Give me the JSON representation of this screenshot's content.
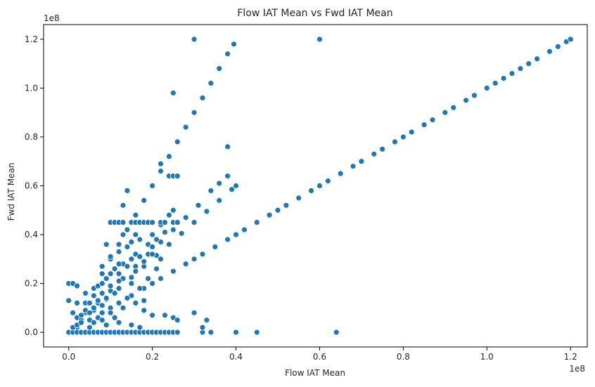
{
  "chart_data": {
    "type": "scatter",
    "title": "Flow IAT Mean vs Fwd IAT Mean",
    "xlabel": "Flow IAT Mean",
    "ylabel": "Fwd IAT Mean",
    "x_offset_label": "1e8",
    "y_offset_label": "1e8",
    "xlim": [
      -0.06,
      1.24
    ],
    "ylim": [
      -0.06,
      1.26
    ],
    "x_ticks": [
      0.0,
      0.2,
      0.4,
      0.6,
      0.8,
      1.0,
      1.2
    ],
    "x_tick_labels": [
      "0.0",
      "0.2",
      "0.4",
      "0.6",
      "0.8",
      "1.0",
      "1.2"
    ],
    "y_ticks": [
      0.0,
      0.2,
      0.4,
      0.6,
      0.8,
      1.0,
      1.2
    ],
    "y_tick_labels": [
      "0.0",
      "0.2",
      "0.4",
      "0.6",
      "0.8",
      "1.0",
      "1.2"
    ],
    "grid": false,
    "legend": "none",
    "point_color": "#1f77b4",
    "point_edge_color": "#ffffff",
    "series": [
      {
        "points": [
          [
            0.0,
            0.0
          ],
          [
            0.02,
            0.02
          ],
          [
            0.05,
            0.05
          ],
          [
            0.08,
            0.08
          ],
          [
            0.1,
            0.1
          ],
          [
            0.12,
            0.12
          ],
          [
            0.15,
            0.15
          ],
          [
            0.18,
            0.18
          ],
          [
            0.2,
            0.2
          ],
          [
            0.22,
            0.22
          ],
          [
            0.25,
            0.25
          ],
          [
            0.28,
            0.28
          ],
          [
            0.3,
            0.3
          ],
          [
            0.32,
            0.32
          ],
          [
            0.35,
            0.35
          ],
          [
            0.38,
            0.38
          ],
          [
            0.4,
            0.4
          ],
          [
            0.42,
            0.42
          ],
          [
            0.45,
            0.45
          ],
          [
            0.48,
            0.48
          ],
          [
            0.5,
            0.5
          ],
          [
            0.52,
            0.52
          ],
          [
            0.55,
            0.55
          ],
          [
            0.58,
            0.58
          ],
          [
            0.6,
            0.6
          ],
          [
            0.62,
            0.62
          ],
          [
            0.65,
            0.65
          ],
          [
            0.68,
            0.68
          ],
          [
            0.7,
            0.7
          ],
          [
            0.73,
            0.73
          ],
          [
            0.75,
            0.75
          ],
          [
            0.78,
            0.78
          ],
          [
            0.8,
            0.8
          ],
          [
            0.82,
            0.82
          ],
          [
            0.85,
            0.85
          ],
          [
            0.87,
            0.87
          ],
          [
            0.9,
            0.9
          ],
          [
            0.92,
            0.92
          ],
          [
            0.95,
            0.95
          ],
          [
            0.97,
            0.97
          ],
          [
            1.0,
            1.0
          ],
          [
            1.02,
            1.02
          ],
          [
            1.04,
            1.04
          ],
          [
            1.06,
            1.06
          ],
          [
            1.08,
            1.08
          ],
          [
            1.1,
            1.1
          ],
          [
            1.12,
            1.12
          ],
          [
            1.15,
            1.15
          ],
          [
            1.17,
            1.17
          ],
          [
            1.19,
            1.19
          ],
          [
            1.2,
            1.2
          ],
          [
            0.02,
            0.06
          ],
          [
            0.04,
            0.12
          ],
          [
            0.06,
            0.18
          ],
          [
            0.08,
            0.24
          ],
          [
            0.1,
            0.3
          ],
          [
            0.12,
            0.36
          ],
          [
            0.14,
            0.42
          ],
          [
            0.16,
            0.48
          ],
          [
            0.18,
            0.54
          ],
          [
            0.2,
            0.6
          ],
          [
            0.22,
            0.66
          ],
          [
            0.24,
            0.72
          ],
          [
            0.26,
            0.78
          ],
          [
            0.28,
            0.84
          ],
          [
            0.3,
            0.9
          ],
          [
            0.32,
            0.96
          ],
          [
            0.34,
            1.02
          ],
          [
            0.36,
            1.08
          ],
          [
            0.38,
            1.14
          ],
          [
            0.395,
            1.18
          ],
          [
            0.03,
            0.045
          ],
          [
            0.06,
            0.09
          ],
          [
            0.09,
            0.135
          ],
          [
            0.12,
            0.18
          ],
          [
            0.15,
            0.225
          ],
          [
            0.18,
            0.27
          ],
          [
            0.21,
            0.315
          ],
          [
            0.24,
            0.36
          ],
          [
            0.27,
            0.405
          ],
          [
            0.3,
            0.45
          ],
          [
            0.33,
            0.495
          ],
          [
            0.36,
            0.54
          ],
          [
            0.39,
            0.585
          ],
          [
            0.4,
            0.6
          ],
          [
            0.04,
            0.08
          ],
          [
            0.08,
            0.16
          ],
          [
            0.12,
            0.24
          ],
          [
            0.16,
            0.32
          ],
          [
            0.2,
            0.4
          ],
          [
            0.22,
            0.44
          ],
          [
            0.24,
            0.48
          ],
          [
            0.25,
            0.5
          ],
          [
            0.03,
            0.05
          ],
          [
            0.07,
            0.12
          ],
          [
            0.1,
            0.17
          ],
          [
            0.13,
            0.22
          ],
          [
            0.16,
            0.27
          ],
          [
            0.19,
            0.32
          ],
          [
            0.22,
            0.37
          ],
          [
            0.25,
            0.42
          ],
          [
            0.28,
            0.47
          ],
          [
            0.31,
            0.52
          ],
          [
            0.34,
            0.58
          ],
          [
            0.36,
            0.61
          ],
          [
            0.38,
            0.64
          ],
          [
            0.0,
            0.2
          ],
          [
            0.01,
            0.2
          ],
          [
            0.02,
            0.19
          ],
          [
            0.0,
            0.13
          ],
          [
            0.01,
            0.08
          ],
          [
            0.02,
            0.12
          ],
          [
            0.1,
            0.45
          ],
          [
            0.11,
            0.45
          ],
          [
            0.12,
            0.45
          ],
          [
            0.13,
            0.45
          ],
          [
            0.15,
            0.45
          ],
          [
            0.16,
            0.45
          ],
          [
            0.17,
            0.45
          ],
          [
            0.18,
            0.45
          ],
          [
            0.19,
            0.45
          ],
          [
            0.2,
            0.45
          ],
          [
            0.22,
            0.45
          ],
          [
            0.23,
            0.45
          ],
          [
            0.25,
            0.45
          ],
          [
            0.26,
            0.45
          ],
          [
            0.0,
            0.0
          ],
          [
            0.01,
            0.0
          ],
          [
            0.02,
            0.0
          ],
          [
            0.03,
            0.0
          ],
          [
            0.04,
            0.0
          ],
          [
            0.05,
            0.0
          ],
          [
            0.06,
            0.0
          ],
          [
            0.07,
            0.0
          ],
          [
            0.08,
            0.0
          ],
          [
            0.09,
            0.0
          ],
          [
            0.1,
            0.0
          ],
          [
            0.11,
            0.0
          ],
          [
            0.12,
            0.0
          ],
          [
            0.13,
            0.0
          ],
          [
            0.14,
            0.0
          ],
          [
            0.15,
            0.0
          ],
          [
            0.16,
            0.0
          ],
          [
            0.17,
            0.0
          ],
          [
            0.18,
            0.0
          ],
          [
            0.19,
            0.0
          ],
          [
            0.2,
            0.0
          ],
          [
            0.21,
            0.0
          ],
          [
            0.22,
            0.0
          ],
          [
            0.23,
            0.0
          ],
          [
            0.24,
            0.0
          ],
          [
            0.25,
            0.0
          ],
          [
            0.26,
            0.0
          ],
          [
            0.32,
            0.0
          ],
          [
            0.34,
            0.0
          ],
          [
            0.4,
            0.0
          ],
          [
            0.45,
            0.0
          ],
          [
            0.64,
            0.0
          ],
          [
            0.3,
            1.2
          ],
          [
            0.6,
            1.2
          ],
          [
            0.25,
            0.98
          ],
          [
            0.38,
            0.76
          ],
          [
            0.14,
            0.58
          ],
          [
            0.13,
            0.52
          ],
          [
            0.09,
            0.36
          ],
          [
            0.3,
            0.08
          ],
          [
            0.32,
            0.02
          ],
          [
            0.33,
            0.05
          ],
          [
            0.23,
            0.07
          ],
          [
            0.25,
            0.06
          ],
          [
            0.26,
            0.05
          ],
          [
            0.18,
            0.09
          ],
          [
            0.2,
            0.07
          ],
          [
            0.15,
            0.03
          ],
          [
            0.17,
            0.02
          ],
          [
            0.01,
            0.02
          ],
          [
            0.02,
            0.03
          ],
          [
            0.03,
            0.04
          ],
          [
            0.03,
            0.07
          ],
          [
            0.04,
            0.09
          ],
          [
            0.05,
            0.02
          ],
          [
            0.05,
            0.12
          ],
          [
            0.06,
            0.04
          ],
          [
            0.06,
            0.15
          ],
          [
            0.07,
            0.06
          ],
          [
            0.07,
            0.19
          ],
          [
            0.08,
            0.05
          ],
          [
            0.08,
            0.11
          ],
          [
            0.08,
            0.27
          ],
          [
            0.09,
            0.03
          ],
          [
            0.09,
            0.14
          ],
          [
            0.09,
            0.22
          ],
          [
            0.1,
            0.08
          ],
          [
            0.1,
            0.19
          ],
          [
            0.1,
            0.31
          ],
          [
            0.11,
            0.06
          ],
          [
            0.11,
            0.16
          ],
          [
            0.11,
            0.26
          ],
          [
            0.12,
            0.04
          ],
          [
            0.12,
            0.21
          ],
          [
            0.12,
            0.33
          ],
          [
            0.13,
            0.1
          ],
          [
            0.13,
            0.28
          ],
          [
            0.14,
            0.14
          ],
          [
            0.14,
            0.35
          ],
          [
            0.15,
            0.2
          ],
          [
            0.15,
            0.3
          ],
          [
            0.16,
            0.12
          ],
          [
            0.16,
            0.25
          ],
          [
            0.17,
            0.18
          ],
          [
            0.17,
            0.38
          ],
          [
            0.18,
            0.13
          ],
          [
            0.18,
            0.29
          ],
          [
            0.19,
            0.22
          ],
          [
            0.2,
            0.32
          ],
          [
            0.21,
            0.26
          ],
          [
            0.22,
            0.3
          ],
          [
            0.04,
            0.16
          ],
          [
            0.05,
            0.08
          ],
          [
            0.06,
            0.1
          ],
          [
            0.07,
            0.13
          ],
          [
            0.08,
            0.2
          ],
          [
            0.1,
            0.24
          ],
          [
            0.12,
            0.28
          ],
          [
            0.13,
            0.4
          ],
          [
            0.14,
            0.27
          ],
          [
            0.15,
            0.37
          ],
          [
            0.16,
            0.4
          ],
          [
            0.17,
            0.31
          ],
          [
            0.19,
            0.36
          ],
          [
            0.2,
            0.35
          ],
          [
            0.21,
            0.38
          ],
          [
            0.23,
            0.41
          ],
          [
            0.24,
            0.64
          ],
          [
            0.25,
            0.64
          ],
          [
            0.22,
            0.69
          ],
          [
            0.26,
            0.64
          ]
        ]
      }
    ]
  }
}
